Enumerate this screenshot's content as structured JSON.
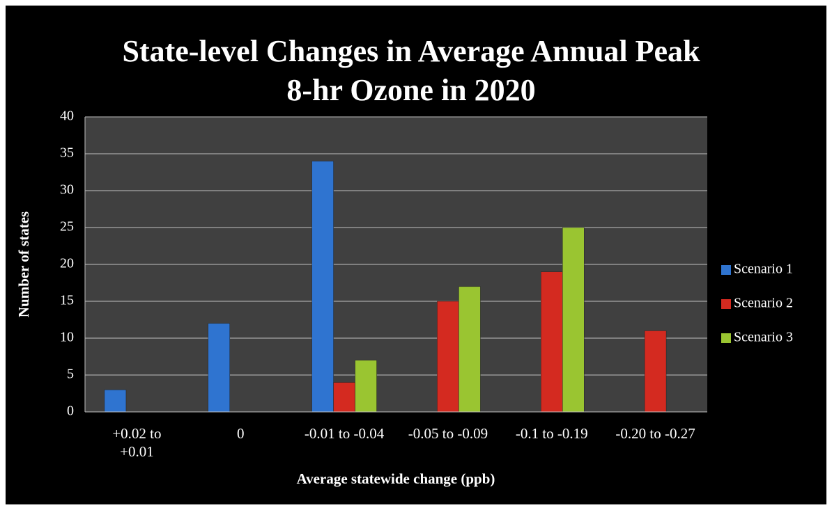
{
  "chart_data": {
    "type": "bar",
    "title": "State-level Changes in Average Annual Peak 8-hr Ozone in 2020",
    "x_label": "Average statewide change (ppb)",
    "y_label": "Number of states",
    "categories": [
      "+0.02 to +0.01",
      "0",
      "-0.01 to -0.04",
      "-0.05 to -0.09",
      "-0.1 to -0.19",
      "-0.20 to -0.27"
    ],
    "series": [
      {
        "name": "Scenario 1",
        "color": "#2f74d0",
        "values": [
          3,
          12,
          34,
          0,
          0,
          0
        ]
      },
      {
        "name": "Scenario 2",
        "color": "#d42a20",
        "values": [
          0,
          0,
          4,
          15,
          19,
          11
        ]
      },
      {
        "name": "Scenario 3",
        "color": "#9ac531",
        "values": [
          0,
          0,
          7,
          17,
          25,
          0
        ]
      }
    ],
    "ylim": [
      0,
      40
    ],
    "yticks": [
      0,
      5,
      10,
      15,
      20,
      25,
      30,
      35,
      40
    ],
    "grid": true,
    "legend": "right"
  }
}
